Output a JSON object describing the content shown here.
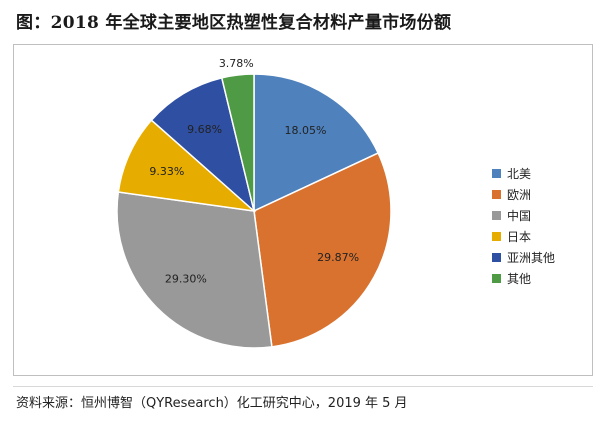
{
  "title": "图：2018 年全球主要地区热塑性复合材料产量市场份额",
  "source": "资料来源：恒州博智（QYResearch）化工研究中心，2019 年 5 月",
  "chart_data": {
    "type": "pie",
    "title": "",
    "legend_position": "right",
    "slices": [
      {
        "name": "北美",
        "value": 18.05,
        "label": "18.05%",
        "color": "#4f81bd"
      },
      {
        "name": "欧洲",
        "value": 29.87,
        "label": "29.87%",
        "color": "#d9722e"
      },
      {
        "name": "中国",
        "value": 29.3,
        "label": "29.30%",
        "color": "#999999"
      },
      {
        "name": "日本",
        "value": 9.33,
        "label": "9.33%",
        "color": "#e6ac00"
      },
      {
        "name": "亚洲其他",
        "value": 9.68,
        "label": "9.68%",
        "color": "#2f4fa2"
      },
      {
        "name": "其他",
        "value": 3.78,
        "label": "3.78%",
        "color": "#4f9a44"
      }
    ]
  }
}
